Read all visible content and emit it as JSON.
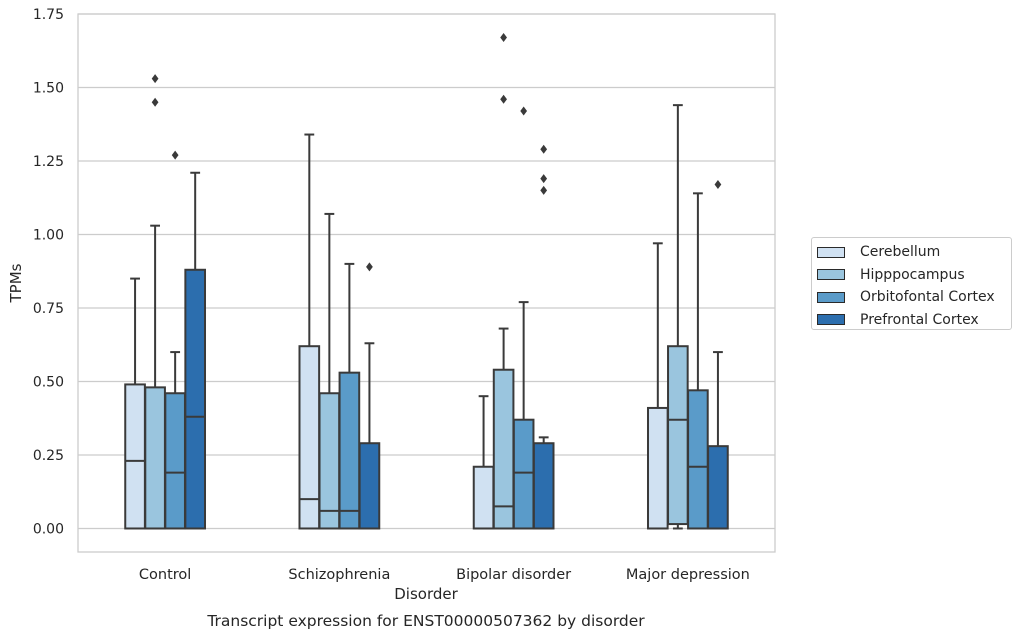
{
  "chart_data": {
    "type": "box",
    "title": "Transcript expression for ENST00000507362 by disorder",
    "xlabel": "Disorder",
    "ylabel": "TPMs",
    "ylim": [
      -0.08,
      1.75
    ],
    "yticks": [
      0.0,
      0.25,
      0.5,
      0.75,
      1.0,
      1.25,
      1.5,
      1.75
    ],
    "ytick_labels": [
      "0.00",
      "0.25",
      "0.50",
      "0.75",
      "1.00",
      "1.25",
      "1.50",
      "1.75"
    ],
    "grid": "horizontal",
    "legend_position": "right",
    "categories": [
      "Control",
      "Schizophrenia",
      "Bipolar disorder",
      "Major depression"
    ],
    "series": [
      {
        "name": "Cerebellum",
        "color": "#d0e1f2",
        "boxes": [
          {
            "whislo": 0.0,
            "q1": 0.0,
            "med": 0.23,
            "q3": 0.49,
            "whishi": 0.85,
            "fliers": []
          },
          {
            "whislo": 0.0,
            "q1": 0.0,
            "med": 0.1,
            "q3": 0.62,
            "whishi": 1.34,
            "fliers": []
          },
          {
            "whislo": 0.0,
            "q1": 0.0,
            "med": 0.0,
            "q3": 0.21,
            "whishi": 0.45,
            "fliers": []
          },
          {
            "whislo": 0.0,
            "q1": 0.0,
            "med": 0.0,
            "q3": 0.41,
            "whishi": 0.97,
            "fliers": []
          }
        ]
      },
      {
        "name": "Hipppocampus",
        "color": "#9ac5de",
        "boxes": [
          {
            "whislo": 0.0,
            "q1": 0.0,
            "med": 0.0,
            "q3": 0.48,
            "whishi": 1.03,
            "fliers": [
              1.45,
              1.53
            ]
          },
          {
            "whislo": 0.0,
            "q1": 0.0,
            "med": 0.06,
            "q3": 0.46,
            "whishi": 1.07,
            "fliers": []
          },
          {
            "whislo": 0.0,
            "q1": 0.0,
            "med": 0.075,
            "q3": 0.54,
            "whishi": 0.68,
            "fliers": [
              1.46,
              1.67
            ]
          },
          {
            "whislo": 0.0,
            "q1": 0.015,
            "med": 0.37,
            "q3": 0.62,
            "whishi": 1.44,
            "fliers": []
          }
        ]
      },
      {
        "name": "Orbitofontal Cortex",
        "color": "#5a9bc9",
        "boxes": [
          {
            "whislo": 0.0,
            "q1": 0.0,
            "med": 0.19,
            "q3": 0.46,
            "whishi": 0.6,
            "fliers": [
              1.27
            ]
          },
          {
            "whislo": 0.0,
            "q1": 0.0,
            "med": 0.06,
            "q3": 0.53,
            "whishi": 0.9,
            "fliers": []
          },
          {
            "whislo": 0.0,
            "q1": 0.0,
            "med": 0.19,
            "q3": 0.37,
            "whishi": 0.77,
            "fliers": [
              1.42
            ]
          },
          {
            "whislo": 0.0,
            "q1": 0.0,
            "med": 0.21,
            "q3": 0.47,
            "whishi": 1.14,
            "fliers": []
          }
        ]
      },
      {
        "name": "Prefrontal Cortex",
        "color": "#2c6eae",
        "boxes": [
          {
            "whislo": 0.0,
            "q1": 0.0,
            "med": 0.38,
            "q3": 0.88,
            "whishi": 1.21,
            "fliers": []
          },
          {
            "whislo": 0.0,
            "q1": 0.0,
            "med": 0.0,
            "q3": 0.29,
            "whishi": 0.63,
            "fliers": [
              0.89
            ]
          },
          {
            "whislo": 0.0,
            "q1": 0.0,
            "med": 0.0,
            "q3": 0.29,
            "whishi": 0.31,
            "fliers": [
              1.15,
              1.19,
              1.29
            ]
          },
          {
            "whislo": 0.0,
            "q1": 0.0,
            "med": 0.0,
            "q3": 0.28,
            "whishi": 0.6,
            "fliers": [
              1.17
            ]
          }
        ]
      }
    ]
  }
}
